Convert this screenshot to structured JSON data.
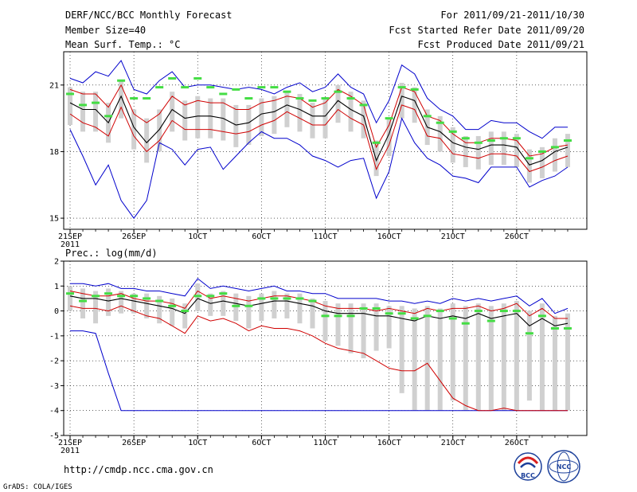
{
  "header": {
    "left": [
      "DERF/NCC/BCC Monthly Forecast",
      "Member Size=40",
      "Mean Surf. Temp.: °C"
    ],
    "right": [
      "For 2011/09/21-2011/10/30",
      "Fcst Started Refer Date 2011/09/20",
      "Fcst Produced Date 2011/09/21"
    ]
  },
  "footer": {
    "url": "http://cmdp.ncc.cma.gov.cn",
    "credit": "GrADS: COLA/IGES"
  },
  "logos": {
    "bcc": "BCC",
    "ncc": "NCC"
  },
  "colors": {
    "mean": "#000000",
    "spread": "#d00000",
    "extreme": "#0000cc",
    "box": "#d0d0d0",
    "marker": "#44dd44"
  },
  "chart_data": [
    {
      "type": "line",
      "title": "Mean Surf. Temp.: °C",
      "x": [
        21,
        22,
        23,
        24,
        25,
        26,
        27,
        28,
        29,
        30,
        31,
        32,
        33,
        34,
        35,
        36,
        37,
        38,
        39,
        40,
        41,
        42,
        43,
        44,
        45,
        46,
        47,
        48,
        49,
        50,
        51,
        52,
        53,
        54,
        55,
        56,
        57,
        58,
        59,
        60
      ],
      "xticks": {
        "positions": [
          21,
          26,
          31,
          36,
          41,
          46,
          51,
          56
        ],
        "labels": [
          "21SEP",
          "26SEP",
          "1OCT",
          "6OCT",
          "11OCT",
          "16OCT",
          "21OCT",
          "26OCT"
        ],
        "sublabel": "2011"
      },
      "ylim": [
        14.5,
        22.5
      ],
      "yticks": [
        15,
        18,
        21
      ],
      "series": [
        {
          "name": "max",
          "values": [
            21.3,
            21.1,
            21.6,
            21.4,
            22.1,
            20.8,
            20.6,
            21.2,
            21.6,
            20.9,
            21.0,
            21.0,
            20.9,
            20.8,
            20.9,
            20.8,
            20.6,
            20.9,
            21.1,
            20.7,
            20.9,
            21.5,
            20.9,
            20.6,
            19.3,
            20.3,
            21.9,
            21.5,
            20.4,
            19.9,
            19.6,
            19.0,
            19.0,
            19.4,
            19.3,
            19.3,
            18.9,
            18.6,
            19.1,
            19.1
          ]
        },
        {
          "name": "upper",
          "values": [
            20.8,
            20.6,
            20.6,
            20.0,
            21.0,
            19.7,
            19.3,
            19.7,
            20.5,
            20.1,
            20.3,
            20.2,
            20.2,
            19.9,
            19.9,
            20.2,
            20.3,
            20.5,
            20.4,
            20.0,
            20.2,
            20.8,
            20.5,
            20.1,
            18.2,
            19.2,
            20.9,
            20.7,
            19.6,
            19.4,
            18.8,
            18.4,
            18.4,
            18.6,
            18.6,
            18.5,
            17.8,
            17.9,
            18.2,
            18.3
          ]
        },
        {
          "name": "mean",
          "values": [
            20.2,
            19.9,
            19.9,
            19.3,
            20.5,
            19.1,
            18.4,
            19.0,
            19.9,
            19.5,
            19.6,
            19.6,
            19.5,
            19.2,
            19.3,
            19.7,
            19.8,
            20.1,
            19.9,
            19.6,
            19.6,
            20.3,
            19.9,
            19.6,
            17.6,
            18.8,
            20.5,
            20.3,
            19.1,
            18.9,
            18.4,
            18.2,
            18.1,
            18.3,
            18.3,
            18.2,
            17.4,
            17.6,
            18.0,
            18.2
          ]
        },
        {
          "name": "lower",
          "values": [
            19.7,
            19.3,
            19.1,
            18.7,
            20.0,
            18.7,
            18.0,
            18.5,
            19.4,
            19.0,
            19.0,
            19.0,
            18.9,
            18.8,
            18.9,
            19.2,
            19.4,
            19.8,
            19.5,
            19.2,
            19.2,
            19.9,
            19.5,
            19.2,
            17.2,
            18.3,
            20.1,
            19.9,
            18.7,
            18.6,
            17.9,
            17.8,
            17.7,
            17.9,
            17.9,
            17.8,
            17.1,
            17.3,
            17.6,
            17.8
          ]
        },
        {
          "name": "min",
          "values": [
            19.0,
            17.8,
            16.5,
            17.4,
            15.8,
            15.0,
            15.8,
            18.4,
            18.1,
            17.4,
            18.1,
            18.2,
            17.2,
            17.8,
            18.4,
            18.9,
            18.6,
            18.6,
            18.3,
            17.8,
            17.6,
            17.3,
            17.6,
            17.7,
            15.9,
            17.1,
            19.5,
            18.4,
            17.7,
            17.4,
            16.9,
            16.8,
            16.6,
            17.3,
            17.3,
            17.3,
            16.4,
            16.7,
            16.9,
            17.3
          ]
        },
        {
          "name": "box_high",
          "values": [
            20.9,
            20.7,
            20.7,
            20.2,
            21.2,
            19.9,
            19.5,
            19.9,
            20.7,
            20.3,
            20.5,
            20.4,
            20.4,
            20.1,
            20.1,
            20.4,
            20.5,
            20.7,
            20.6,
            20.2,
            20.4,
            21.0,
            20.7,
            20.3,
            18.5,
            19.5,
            21.1,
            20.9,
            19.9,
            19.6,
            19.1,
            18.7,
            18.7,
            18.9,
            18.9,
            18.8,
            18.1,
            18.2,
            18.6,
            18.8
          ]
        },
        {
          "name": "box_low",
          "values": [
            19.2,
            18.9,
            18.9,
            18.4,
            19.5,
            18.1,
            17.5,
            18.0,
            18.9,
            18.5,
            18.6,
            18.6,
            18.5,
            18.2,
            18.3,
            18.7,
            18.8,
            19.1,
            18.9,
            18.6,
            18.6,
            19.3,
            18.9,
            18.6,
            16.9,
            17.8,
            19.5,
            19.3,
            18.3,
            18.0,
            17.5,
            17.3,
            17.2,
            17.4,
            17.4,
            17.3,
            16.6,
            16.8,
            17.1,
            17.3
          ]
        },
        {
          "name": "marker",
          "values": [
            20.6,
            20.1,
            20.2,
            19.6,
            21.2,
            20.4,
            20.4,
            20.9,
            21.3,
            20.9,
            21.3,
            20.9,
            20.6,
            20.8,
            20.4,
            20.9,
            20.9,
            20.7,
            20.4,
            20.3,
            20.4,
            20.7,
            20.4,
            20.1,
            18.4,
            19.5,
            20.9,
            20.8,
            19.6,
            19.3,
            18.9,
            18.6,
            18.4,
            18.5,
            18.6,
            18.6,
            17.7,
            18.0,
            18.2,
            18.5
          ]
        }
      ]
    },
    {
      "type": "line",
      "title": "Prec.: log(mm/d)",
      "x": [
        21,
        22,
        23,
        24,
        25,
        26,
        27,
        28,
        29,
        30,
        31,
        32,
        33,
        34,
        35,
        36,
        37,
        38,
        39,
        40,
        41,
        42,
        43,
        44,
        45,
        46,
        47,
        48,
        49,
        50,
        51,
        52,
        53,
        54,
        55,
        56,
        57,
        58,
        59,
        60
      ],
      "xticks": {
        "positions": [
          21,
          26,
          31,
          36,
          41,
          46,
          51,
          56
        ],
        "labels": [
          "21SEP",
          "26SEP",
          "1OCT",
          "6OCT",
          "11OCT",
          "16OCT",
          "21OCT",
          "26OCT"
        ],
        "sublabel": "2011"
      },
      "ylim": [
        -5,
        2
      ],
      "yticks": [
        -5,
        -4,
        -3,
        -2,
        -1,
        0,
        1,
        2
      ],
      "series": [
        {
          "name": "max",
          "values": [
            1.1,
            1.1,
            1.0,
            1.1,
            0.9,
            0.9,
            0.8,
            0.8,
            0.7,
            0.6,
            1.3,
            0.9,
            1.0,
            0.9,
            0.8,
            0.9,
            1.0,
            0.8,
            0.8,
            0.7,
            0.7,
            0.5,
            0.5,
            0.5,
            0.5,
            0.4,
            0.4,
            0.3,
            0.4,
            0.3,
            0.5,
            0.4,
            0.5,
            0.4,
            0.5,
            0.6,
            0.2,
            0.5,
            -0.1,
            0.1
          ]
        },
        {
          "name": "upper",
          "values": [
            0.8,
            0.7,
            0.6,
            0.6,
            0.7,
            0.5,
            0.4,
            0.4,
            0.3,
            0.1,
            0.8,
            0.5,
            0.6,
            0.5,
            0.4,
            0.5,
            0.6,
            0.6,
            0.5,
            0.4,
            0.2,
            0.1,
            0.1,
            0.1,
            0.0,
            0.1,
            0.0,
            -0.1,
            0.1,
            0.0,
            0.1,
            0.1,
            0.2,
            0.0,
            0.1,
            0.3,
            -0.2,
            0.1,
            -0.3,
            -0.3
          ]
        },
        {
          "name": "mean",
          "values": [
            0.6,
            0.5,
            0.5,
            0.4,
            0.5,
            0.4,
            0.3,
            0.2,
            0.1,
            -0.1,
            0.5,
            0.3,
            0.4,
            0.3,
            0.2,
            0.3,
            0.4,
            0.4,
            0.3,
            0.2,
            0.0,
            -0.1,
            -0.1,
            -0.1,
            -0.2,
            -0.2,
            -0.3,
            -0.4,
            -0.2,
            -0.3,
            -0.2,
            -0.3,
            -0.1,
            -0.3,
            -0.2,
            -0.1,
            -0.6,
            -0.3,
            -0.6,
            -0.5
          ]
        },
        {
          "name": "lower",
          "values": [
            0.2,
            0.1,
            0.1,
            0.0,
            0.2,
            0.0,
            -0.2,
            -0.3,
            -0.6,
            -0.9,
            -0.2,
            -0.4,
            -0.3,
            -0.5,
            -0.8,
            -0.6,
            -0.7,
            -0.7,
            -0.8,
            -1.0,
            -1.3,
            -1.5,
            -1.6,
            -1.7,
            -2.0,
            -2.3,
            -2.4,
            -2.4,
            -2.1,
            -2.8,
            -3.5,
            -3.8,
            -4.0,
            -4.0,
            -3.9,
            -4.0,
            -4.0,
            -4.0,
            -4.0,
            -4.0
          ]
        },
        {
          "name": "min",
          "values": [
            -0.8,
            -0.8,
            -0.9,
            -2.5,
            -4.0,
            -4.0,
            -4.0,
            -4.0,
            -4.0,
            -4.0,
            -4.0,
            -4.0,
            -4.0,
            -4.0,
            -4.0,
            -4.0,
            -4.0,
            -4.0,
            -4.0,
            -4.0,
            -4.0,
            -4.0,
            -4.0,
            -4.0,
            -4.0,
            -4.0,
            -4.0,
            -4.0,
            -4.0,
            -4.0,
            -4.0,
            -4.0,
            -4.0,
            -4.0,
            -4.0,
            -4.0,
            -4.0,
            -4.0,
            -4.0,
            -4.0
          ]
        },
        {
          "name": "box_high",
          "values": [
            1.0,
            0.9,
            0.8,
            0.9,
            0.8,
            0.7,
            0.7,
            0.6,
            0.5,
            0.3,
            1.1,
            0.7,
            0.8,
            0.7,
            0.6,
            0.7,
            0.8,
            0.7,
            0.7,
            0.5,
            0.4,
            0.3,
            0.3,
            0.3,
            0.3,
            0.2,
            0.2,
            0.1,
            0.2,
            0.1,
            0.3,
            0.2,
            0.3,
            0.2,
            0.3,
            0.4,
            0.0,
            0.3,
            -0.2,
            -0.1
          ]
        },
        {
          "name": "box_low",
          "values": [
            0.0,
            -0.3,
            -0.5,
            -0.2,
            -0.1,
            -0.1,
            -0.3,
            -0.5,
            -0.6,
            -0.7,
            0.0,
            -0.2,
            -0.2,
            -0.4,
            -0.7,
            -0.4,
            -0.3,
            -0.3,
            -0.5,
            -0.7,
            -1.2,
            -1.4,
            -1.7,
            -1.9,
            -1.6,
            -1.5,
            -3.3,
            -4.0,
            -4.0,
            -4.0,
            -3.6,
            -4.0,
            -4.0,
            -4.0,
            -4.0,
            -4.0,
            -3.6,
            -4.0,
            -4.0,
            -4.0
          ]
        },
        {
          "name": "marker",
          "values": [
            0.7,
            0.4,
            0.6,
            0.7,
            0.6,
            0.6,
            0.5,
            0.4,
            0.2,
            0.0,
            0.6,
            0.6,
            0.7,
            0.2,
            0.2,
            0.5,
            0.5,
            0.5,
            0.5,
            0.4,
            -0.2,
            -0.2,
            -0.2,
            0.1,
            0.1,
            -0.1,
            -0.1,
            -0.3,
            -0.2,
            0.0,
            -0.3,
            -0.5,
            0.0,
            -0.4,
            0.0,
            0.0,
            -0.9,
            -0.2,
            -0.7,
            -0.7
          ]
        }
      ]
    }
  ]
}
